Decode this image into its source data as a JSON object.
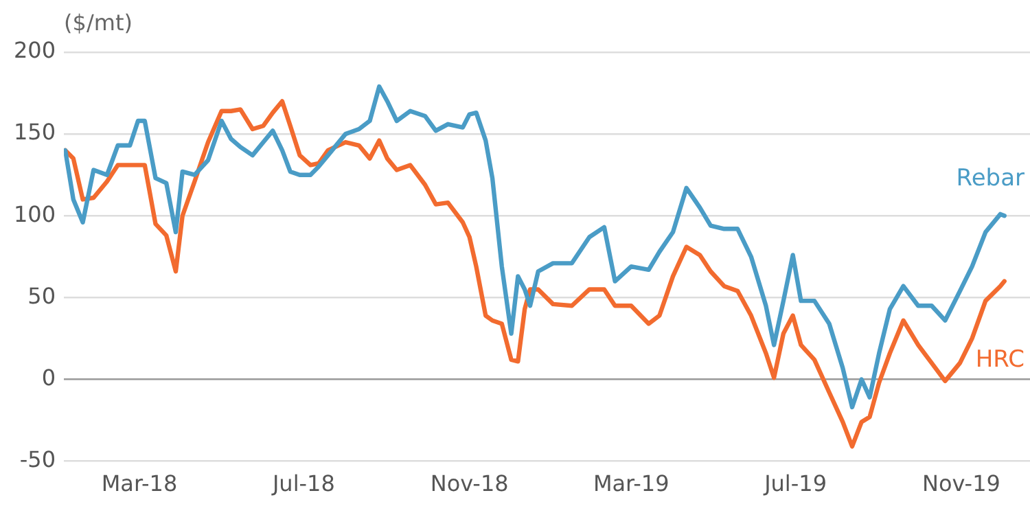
{
  "chart_data": {
    "type": "line",
    "ylabel": "($/mt)",
    "x": [
      "2018-01-05",
      "2018-01-11",
      "2018-01-18",
      "2018-01-26",
      "2018-02-05",
      "2018-02-13",
      "2018-02-22",
      "2018-02-28",
      "2018-03-05",
      "2018-03-13",
      "2018-03-21",
      "2018-03-28",
      "2018-04-02",
      "2018-04-11",
      "2018-04-21",
      "2018-05-01",
      "2018-05-08",
      "2018-05-15",
      "2018-05-24",
      "2018-06-01",
      "2018-06-08",
      "2018-06-15",
      "2018-06-21",
      "2018-06-28",
      "2018-07-06",
      "2018-07-12",
      "2018-07-19",
      "2018-08-01",
      "2018-08-11",
      "2018-08-19",
      "2018-08-26",
      "2018-09-01",
      "2018-09-08",
      "2018-09-18",
      "2018-09-29",
      "2018-10-07",
      "2018-10-16",
      "2018-10-27",
      "2018-11-01",
      "2018-11-06",
      "2018-11-13",
      "2018-11-18",
      "2018-11-25",
      "2018-12-02",
      "2018-12-07",
      "2018-12-12",
      "2018-12-16",
      "2018-12-22",
      "2019-01-02",
      "2019-01-16",
      "2019-01-29",
      "2019-02-09",
      "2019-02-17",
      "2019-03-01",
      "2019-03-14",
      "2019-03-22",
      "2019-04-01",
      "2019-04-11",
      "2019-04-21",
      "2019-04-29",
      "2019-05-09",
      "2019-05-19",
      "2019-05-29",
      "2019-06-09",
      "2019-06-15",
      "2019-06-22",
      "2019-06-29",
      "2019-07-05",
      "2019-07-15",
      "2019-07-26",
      "2019-08-05",
      "2019-08-12",
      "2019-08-19",
      "2019-08-25",
      "2019-09-01",
      "2019-09-09",
      "2019-09-19",
      "2019-09-30",
      "2019-10-10",
      "2019-10-20",
      "2019-10-31",
      "2019-11-09",
      "2019-11-19",
      "2019-11-30",
      "2019-12-03"
    ],
    "series": [
      {
        "name": "Rebar",
        "color": "#4a9cc6",
        "values": [
          140,
          110,
          96,
          128,
          125,
          143,
          143,
          158,
          158,
          123,
          120,
          90,
          127,
          125,
          134,
          158,
          147,
          142,
          137,
          145,
          152,
          140,
          127,
          125,
          125,
          130,
          137,
          150,
          153,
          158,
          179,
          170,
          158,
          164,
          161,
          152,
          156,
          154,
          162,
          163,
          146,
          123,
          69,
          28,
          63,
          55,
          45,
          66,
          71,
          71,
          87,
          93,
          60,
          69,
          67,
          78,
          90,
          117,
          105,
          94,
          92,
          92,
          75,
          45,
          21,
          48,
          76,
          48,
          48,
          34,
          7,
          -17,
          0,
          -11,
          16,
          43,
          57,
          45,
          45,
          36,
          54,
          69,
          90,
          101,
          100
        ]
      },
      {
        "name": "HRC",
        "color": "#f26b2f",
        "values": [
          140,
          135,
          110,
          111,
          121,
          131,
          131,
          131,
          131,
          95,
          88,
          66,
          100,
          121,
          145,
          164,
          164,
          165,
          153,
          155,
          163,
          170,
          155,
          137,
          131,
          132,
          140,
          145,
          143,
          135,
          146,
          135,
          128,
          131,
          119,
          107,
          108,
          96,
          87,
          69,
          39,
          36,
          34,
          12,
          11,
          43,
          55,
          55,
          46,
          45,
          55,
          55,
          45,
          45,
          34,
          39,
          63,
          81,
          76,
          66,
          57,
          54,
          39,
          16,
          1,
          28,
          39,
          21,
          12,
          -8,
          -26,
          -41,
          -26,
          -23,
          -2,
          16,
          36,
          21,
          10,
          -1,
          10,
          25,
          48,
          57,
          60
        ]
      }
    ],
    "xlim": [
      "2018-01-04",
      "2019-12-22"
    ],
    "xticks": [
      {
        "value": "2018-03-01",
        "label": "Mar-18"
      },
      {
        "value": "2018-07-01",
        "label": "Jul-18"
      },
      {
        "value": "2018-11-01",
        "label": "Nov-18"
      },
      {
        "value": "2019-03-01",
        "label": "Mar-19"
      },
      {
        "value": "2019-07-01",
        "label": "Jul-19"
      },
      {
        "value": "2019-11-01",
        "label": "Nov-19"
      }
    ],
    "ylim": [
      -50,
      200
    ],
    "yticks": [
      -50,
      0,
      50,
      100,
      150,
      200
    ],
    "grid": "y",
    "legend": false,
    "marker": "none",
    "line_style": "solid"
  }
}
